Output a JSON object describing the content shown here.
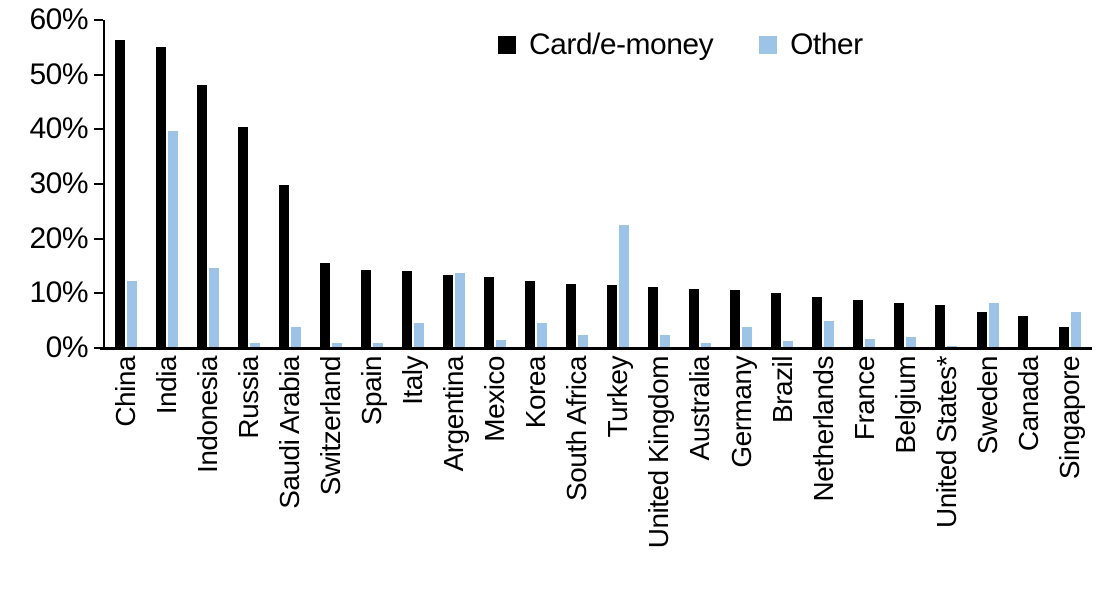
{
  "chart_data": {
    "type": "bar",
    "title": "",
    "xlabel": "",
    "ylabel": "",
    "categories": [
      "China",
      "India",
      "Indonesia",
      "Russia",
      "Saudi Arabia",
      "Switzerland",
      "Spain",
      "Italy",
      "Argentina",
      "Mexico",
      "Korea",
      "South Africa",
      "Turkey",
      "United Kingdom",
      "Australia",
      "Germany",
      "Brazil",
      "Netherlands",
      "France",
      "Belgium",
      "United States*",
      "Sweden",
      "Canada",
      "Singapore"
    ],
    "series": [
      {
        "name": "Card/e-money",
        "color": "#000000",
        "values": [
          56.3,
          55.0,
          48.2,
          40.5,
          29.8,
          15.6,
          14.2,
          14.1,
          13.4,
          13.0,
          12.2,
          11.8,
          11.6,
          11.1,
          10.8,
          10.6,
          10.1,
          9.3,
          8.7,
          8.2,
          7.9,
          6.5,
          5.9,
          3.9
        ]
      },
      {
        "name": "Other",
        "color": "#9DC3E6",
        "values": [
          12.3,
          39.7,
          14.6,
          1.0,
          3.9,
          0.9,
          1.0,
          4.6,
          13.8,
          1.4,
          4.6,
          2.4,
          22.5,
          2.4,
          1.0,
          3.9,
          1.2,
          4.9,
          1.6,
          2.0,
          0.3,
          8.2,
          0.0,
          6.6
        ]
      }
    ],
    "ylim": [
      0,
      60
    ],
    "yticks": [
      "0%",
      "10%",
      "20%",
      "30%",
      "40%",
      "50%",
      "60%"
    ],
    "grid": false,
    "legend_position": "top-center"
  }
}
